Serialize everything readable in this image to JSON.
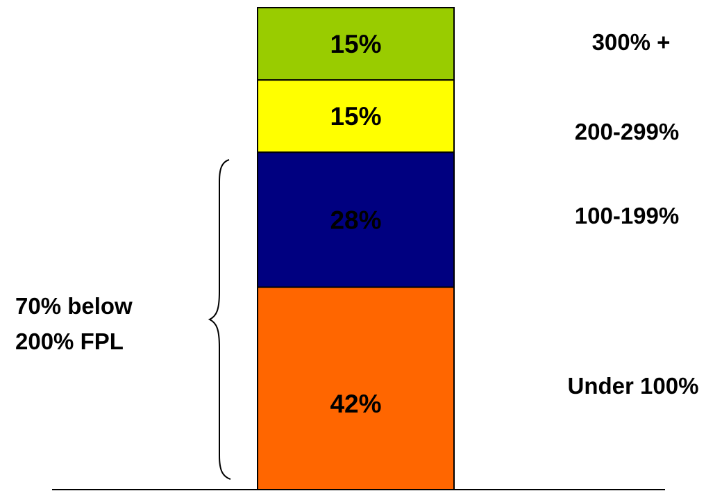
{
  "chart_data": {
    "type": "bar",
    "stacked": true,
    "series": [
      {
        "name": "Under 100%",
        "value": 42,
        "label": "42%",
        "color": "#ff6600",
        "label_color": "#000000"
      },
      {
        "name": "100-199%",
        "value": 28,
        "label": "28%",
        "color": "#000080",
        "label_color": "#000000"
      },
      {
        "name": "200-299%",
        "value": 15,
        "label": "15%",
        "color": "#ffff00",
        "label_color": "#000000"
      },
      {
        "name": "300% +",
        "value": 15,
        "label": "15%",
        "color": "#99cc00",
        "label_color": "#000000"
      }
    ],
    "annotation": {
      "line1": "70% below",
      "line2": "200% FPL",
      "spans": [
        "Under 100%",
        "100-199%"
      ]
    },
    "ylim": [
      0,
      100
    ]
  }
}
